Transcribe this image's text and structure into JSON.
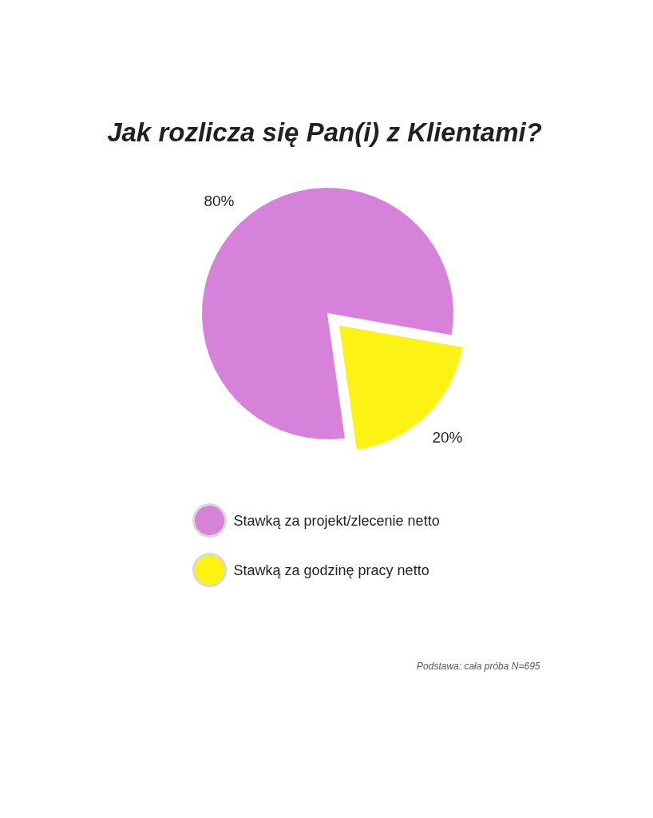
{
  "chart_data": {
    "type": "pie",
    "title": "Jak rozlicza się Pan(i) z Klientami?",
    "categories": [
      "Stawką za projekt/zlecenie netto",
      "Stawką za godzinę pracy netto"
    ],
    "values": [
      80,
      20
    ],
    "colors": [
      "#d681da",
      "#fcf213"
    ],
    "value_labels": [
      "80%",
      "20%"
    ],
    "legend": "bottom",
    "annotations": [
      "Podstawa: cała próba N=695"
    ]
  }
}
